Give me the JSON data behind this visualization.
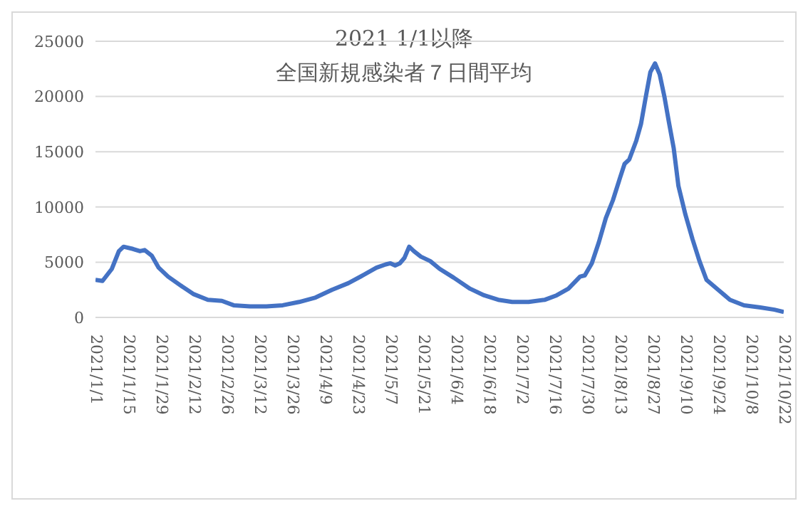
{
  "chart_data": {
    "type": "line",
    "title": "2021 1/1以降",
    "subtitle": "全国新規感染者７日間平均",
    "x": [
      "2021-01-01",
      "2021-01-04",
      "2021-01-08",
      "2021-01-11",
      "2021-01-13",
      "2021-01-17",
      "2021-01-20",
      "2021-01-22",
      "2021-01-25",
      "2021-01-28",
      "2021-02-01",
      "2021-02-07",
      "2021-02-12",
      "2021-02-18",
      "2021-02-24",
      "2021-03-01",
      "2021-03-08",
      "2021-03-15",
      "2021-03-22",
      "2021-03-29",
      "2021-04-05",
      "2021-04-12",
      "2021-04-19",
      "2021-04-26",
      "2021-05-01",
      "2021-05-05",
      "2021-05-07",
      "2021-05-09",
      "2021-05-11",
      "2021-05-13",
      "2021-05-15",
      "2021-05-17",
      "2021-05-20",
      "2021-05-24",
      "2021-05-28",
      "2021-06-03",
      "2021-06-10",
      "2021-06-16",
      "2021-06-22",
      "2021-06-28",
      "2021-07-05",
      "2021-07-12",
      "2021-07-17",
      "2021-07-22",
      "2021-07-27",
      "2021-07-29",
      "2021-08-01",
      "2021-08-04",
      "2021-08-07",
      "2021-08-10",
      "2021-08-13",
      "2021-08-15",
      "2021-08-17",
      "2021-08-20",
      "2021-08-22",
      "2021-08-24",
      "2021-08-26",
      "2021-08-28",
      "2021-08-30",
      "2021-09-01",
      "2021-09-03",
      "2021-09-05",
      "2021-09-07",
      "2021-09-10",
      "2021-09-13",
      "2021-09-16",
      "2021-09-19",
      "2021-09-24",
      "2021-09-29",
      "2021-10-05",
      "2021-10-12",
      "2021-10-18",
      "2021-10-22"
    ],
    "series": [
      {
        "color": "#4472c4",
        "values": [
          3400,
          3300,
          4400,
          6000,
          6400,
          6200,
          6000,
          6100,
          5600,
          4500,
          3700,
          2800,
          2100,
          1600,
          1500,
          1100,
          1000,
          1000,
          1100,
          1400,
          1800,
          2500,
          3100,
          3900,
          4500,
          4800,
          4900,
          4700,
          4900,
          5400,
          6400,
          6000,
          5500,
          5100,
          4400,
          3600,
          2600,
          2000,
          1600,
          1400,
          1400,
          1600,
          2000,
          2600,
          3700,
          3800,
          4900,
          6800,
          9000,
          10600,
          12600,
          13900,
          14300,
          16000,
          17500,
          19900,
          22200,
          23000,
          22000,
          20000,
          17600,
          15300,
          11900,
          9300,
          7100,
          5100,
          3400,
          2500,
          1600,
          1100,
          900,
          700,
          500
        ]
      }
    ],
    "xlim": [
      "2021-01-01",
      "2021-10-22"
    ],
    "xticks": [
      {
        "value": "2021-01-01",
        "label": "2021/1/1"
      },
      {
        "value": "2021-01-15",
        "label": "2021/1/15"
      },
      {
        "value": "2021-01-29",
        "label": "2021/1/29"
      },
      {
        "value": "2021-02-12",
        "label": "2021/2/12"
      },
      {
        "value": "2021-02-26",
        "label": "2021/2/26"
      },
      {
        "value": "2021-03-12",
        "label": "2021/3/12"
      },
      {
        "value": "2021-03-26",
        "label": "2021/3/26"
      },
      {
        "value": "2021-04-09",
        "label": "2021/4/9"
      },
      {
        "value": "2021-04-23",
        "label": "2021/4/23"
      },
      {
        "value": "2021-05-07",
        "label": "2021/5/7"
      },
      {
        "value": "2021-05-21",
        "label": "2021/5/21"
      },
      {
        "value": "2021-06-04",
        "label": "2021/6/4"
      },
      {
        "value": "2021-06-18",
        "label": "2021/6/18"
      },
      {
        "value": "2021-07-02",
        "label": "2021/7/2"
      },
      {
        "value": "2021-07-16",
        "label": "2021/7/16"
      },
      {
        "value": "2021-07-30",
        "label": "2021/7/30"
      },
      {
        "value": "2021-08-13",
        "label": "2021/8/13"
      },
      {
        "value": "2021-08-27",
        "label": "2021/8/27"
      },
      {
        "value": "2021-09-10",
        "label": "2021/9/10"
      },
      {
        "value": "2021-09-24",
        "label": "2021/9/24"
      },
      {
        "value": "2021-10-08",
        "label": "2021/10/8"
      },
      {
        "value": "2021-10-22",
        "label": "2021/10/22"
      }
    ],
    "ylim": [
      0,
      25000
    ],
    "yticks": [
      0,
      5000,
      10000,
      15000,
      20000,
      25000
    ],
    "grid": "y",
    "legend": false,
    "marker": "none",
    "line_style": "solid"
  }
}
